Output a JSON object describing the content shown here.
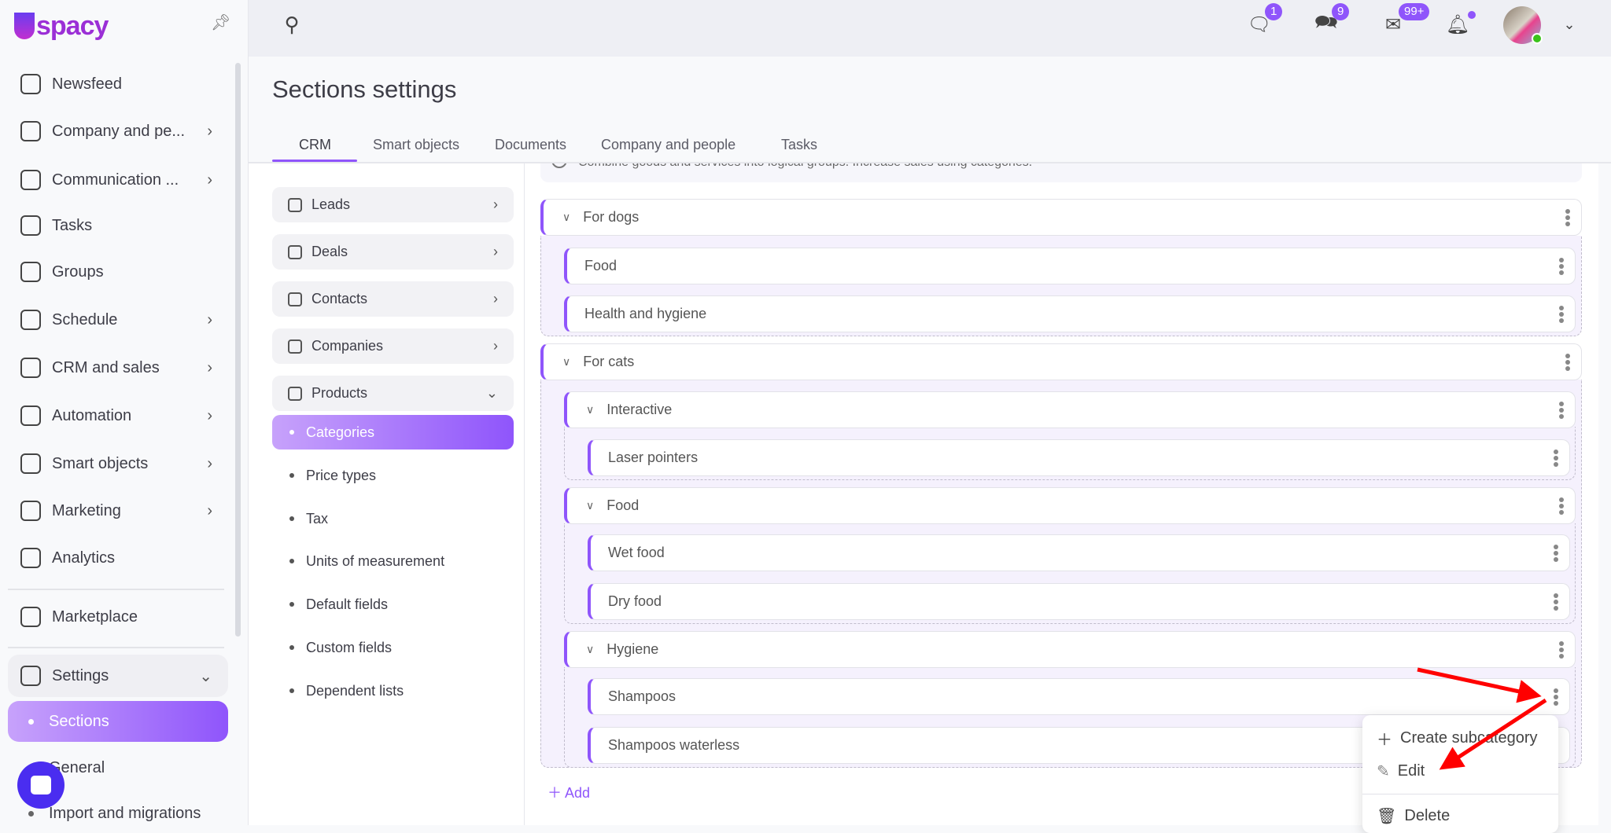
{
  "app": {
    "logo": "spacy"
  },
  "sidebar": {
    "items": [
      {
        "label": "Newsfeed",
        "icon": "home-icon"
      },
      {
        "label": "Company and pe...",
        "icon": "building-icon",
        "chevron": true
      },
      {
        "label": "Communication ...",
        "icon": "phone-icon",
        "chevron": true
      },
      {
        "label": "Tasks",
        "icon": "check-circle-icon"
      },
      {
        "label": "Groups",
        "icon": "users-icon"
      },
      {
        "label": "Schedule",
        "icon": "calendar-icon",
        "chevron": true
      },
      {
        "label": "CRM and sales",
        "icon": "coins-icon",
        "chevron": true
      },
      {
        "label": "Automation",
        "icon": "bolt-icon",
        "chevron": true
      },
      {
        "label": "Smart objects",
        "icon": "smart-object-icon",
        "chevron": true
      },
      {
        "label": "Marketing",
        "icon": "megaphone-icon",
        "chevron": true
      },
      {
        "label": "Analytics",
        "icon": "chart-icon"
      },
      {
        "label": "Marketplace",
        "icon": "store-icon"
      },
      {
        "label": "Settings",
        "icon": "gear-icon",
        "chevron": true
      }
    ],
    "settings_sub": [
      "Sections",
      "General",
      "Import and migrations"
    ]
  },
  "header": {
    "badges": {
      "messages": "1",
      "chats": "9",
      "mail": "99+"
    }
  },
  "page": {
    "title": "Sections settings",
    "tabs": [
      "CRM",
      "Smart objects",
      "Documents",
      "Company and people",
      "Tasks"
    ],
    "left_menu": [
      "Leads",
      "Deals",
      "Contacts",
      "Companies",
      "Products"
    ],
    "products_sub": [
      "Categories",
      "Price types",
      "Tax",
      "Units of measurement",
      "Default fields",
      "Custom fields",
      "Dependent lists"
    ],
    "info": "Combine goods and services into logical groups. Increase sales using categories.",
    "tree": {
      "for_dogs": "For dogs",
      "food": "Food",
      "health": "Health and hygiene",
      "for_cats": "For cats",
      "interactive": "Interactive",
      "laser": "Laser pointers",
      "cat_food": "Food",
      "wet": "Wet food",
      "dry": "Dry food",
      "hygiene": "Hygiene",
      "shampoos": "Shampoos",
      "shampoos_waterless": "Shampoos waterless"
    },
    "add": "Add"
  },
  "context_menu": {
    "create": "Create subcategory",
    "edit": "Edit",
    "delete": "Delete"
  },
  "colors": {
    "accent": "#8f55fb",
    "annotation": "#ff0000"
  }
}
